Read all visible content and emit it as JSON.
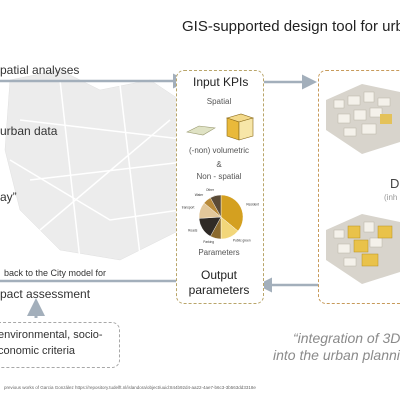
{
  "title": "GIS-supported design tool for urb",
  "left": {
    "spatial_analyses": "patial analyses",
    "urban_data": "urban data",
    "quote_fragment": "ay”",
    "back_to_city": "back to the City model for",
    "impact_assessment": "pact assessment",
    "criteria_line1": "environmental, socio-",
    "criteria_line2": "conomic criteria"
  },
  "kpi": {
    "input_label": "Input KPIs",
    "spatial": "Spatial",
    "volumetric": "(-non) volumetric",
    "ampersand": "&",
    "non_spatial": "Non - spatial",
    "parameters": "Parameters",
    "output_line1": "Output",
    "output_line2": "parameters",
    "pie_labels": [
      "Residential",
      "Public green",
      "Parking",
      "Roads",
      "Public transport",
      "Water",
      "Other"
    ]
  },
  "right": {
    "letter": "D",
    "subtext": "(inh",
    "quote_line1": "“integration of 3D",
    "quote_line2": "into the urban planni"
  },
  "reference": "previous works of Garcia González https://repository.tudelft.nl/islandora/object/uuid:844b92d4-aa22-4ae7-b6c3-3b563dd3318e",
  "colors": {
    "arrow": "#a3afbb",
    "kpi_border": "#b9a56a",
    "pie": [
      "#d4a020",
      "#f2d67a",
      "#8b6a2e",
      "#2f2a26",
      "#e2c79a",
      "#b88a3a",
      "#5a4a36"
    ]
  }
}
